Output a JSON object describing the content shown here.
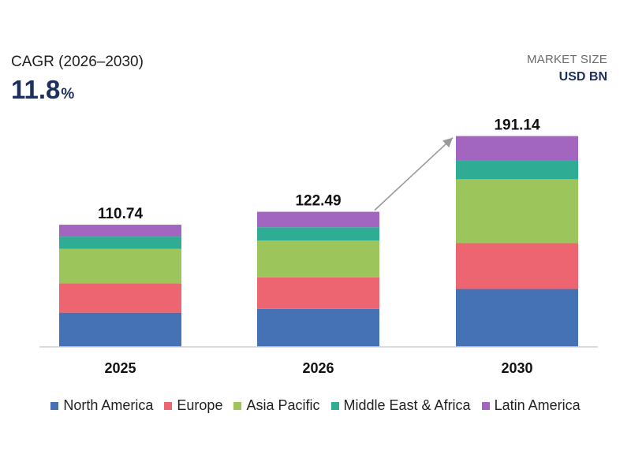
{
  "header": {
    "cagr_label": "CAGR (2026–2030)",
    "cagr_number": "11.8",
    "cagr_unit": "%",
    "market_size_label": "MARKET SIZE",
    "market_size_unit": "USD BN"
  },
  "chart_data": {
    "type": "bar",
    "stacked": true,
    "categories": [
      "2025",
      "2026",
      "2030"
    ],
    "totals": [
      "110.74",
      "122.49",
      "191.14"
    ],
    "series": [
      {
        "name": "North America",
        "color": "#4472b4",
        "values": [
          31.0,
          34.5,
          52.5
        ]
      },
      {
        "name": "Europe",
        "color": "#ec6570",
        "values": [
          26.5,
          28.5,
          41.5
        ]
      },
      {
        "name": "Asia Pacific",
        "color": "#9cc55c",
        "values": [
          31.5,
          33.5,
          58.0
        ]
      },
      {
        "name": "Middle East & Africa",
        "color": "#2eac94",
        "values": [
          11.0,
          12.0,
          17.0
        ]
      },
      {
        "name": "Latin America",
        "color": "#a265c0",
        "values": [
          10.74,
          14.0,
          22.14
        ]
      }
    ],
    "ylim": [
      0,
      210
    ],
    "grid": false,
    "arrow": {
      "from": "2026",
      "to": "2030"
    },
    "legend_position": "bottom"
  }
}
